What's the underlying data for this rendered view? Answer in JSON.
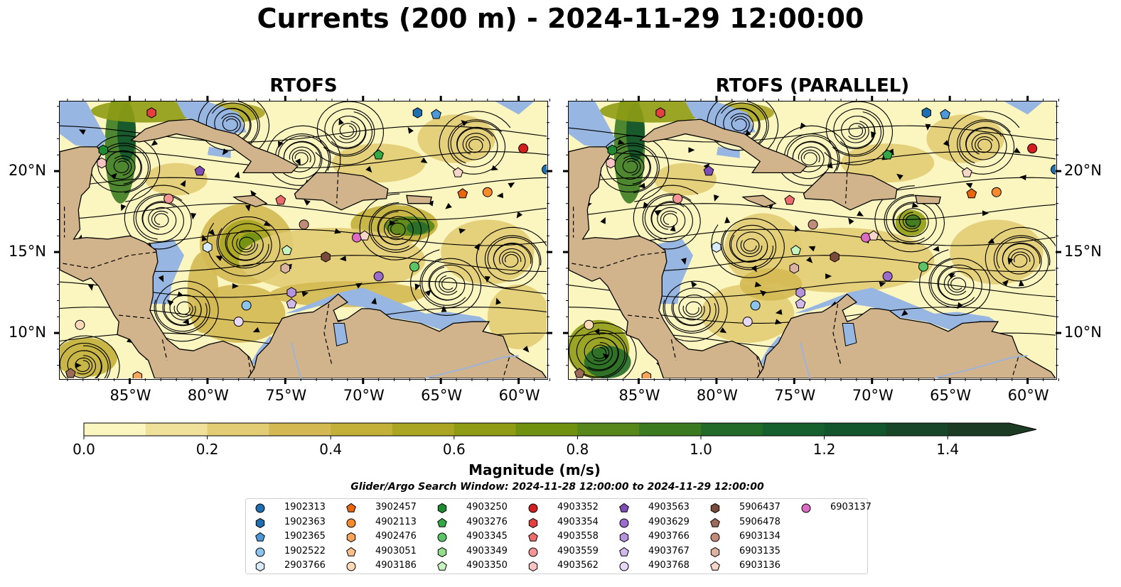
{
  "title": "Currents (200 m) - 2024-11-29 12:00:00",
  "panels": [
    {
      "title": "RTOFS"
    },
    {
      "title": "RTOFS (PARALLEL)"
    }
  ],
  "axes": {
    "lon_ticks": [
      "85°W",
      "80°W",
      "75°W",
      "70°W",
      "65°W",
      "60°W"
    ],
    "lon_values": [
      -85,
      -80,
      -75,
      -70,
      -65,
      -60
    ],
    "lat_ticks": [
      "20°N",
      "15°N",
      "10°N"
    ],
    "lat_values": [
      20,
      15,
      10
    ],
    "lon_range": [
      -89.5,
      -58.2
    ],
    "lat_range": [
      7.2,
      24.3
    ]
  },
  "colorbar": {
    "label": "Magnitude (m/s)",
    "tick_labels": [
      "0.0",
      "0.2",
      "0.4",
      "0.6",
      "0.8",
      "1.0",
      "1.2",
      "1.4"
    ],
    "tick_values": [
      0.0,
      0.2,
      0.4,
      0.6,
      0.8,
      1.0,
      1.2,
      1.4
    ],
    "range": [
      0,
      1.5
    ],
    "extend": "max",
    "colors": [
      "#fbf5c0",
      "#efe19a",
      "#e2cc74",
      "#d4b953",
      "#c2b038",
      "#aaa522",
      "#8f9c14",
      "#709110",
      "#57861a",
      "#3c7a20",
      "#236b28",
      "#15602d",
      "#13552d",
      "#174629",
      "#1b3b23"
    ]
  },
  "search_window": "Glider/Argo Search Window: 2024-11-28 12:00:00 to 2024-11-29 12:00:00",
  "colors": {
    "ocean_low": "#fbf5c0",
    "land": "#d2b48c",
    "shallow_water": "#97b6e2"
  },
  "legend": [
    {
      "id": "1902313",
      "marker": "circle",
      "color": "#1f6eb0"
    },
    {
      "id": "1902363",
      "marker": "hexagon",
      "color": "#1f6eb0"
    },
    {
      "id": "1902365",
      "marker": "pentagon",
      "color": "#4c98d9"
    },
    {
      "id": "1902522",
      "marker": "circle",
      "color": "#8cc4ee"
    },
    {
      "id": "2903766",
      "marker": "hexagon",
      "color": "#d7ebfa"
    },
    {
      "id": "3902457",
      "marker": "pentagon",
      "color": "#e8660d"
    },
    {
      "id": "4902113",
      "marker": "circle",
      "color": "#f58a2f"
    },
    {
      "id": "4902476",
      "marker": "hexagon",
      "color": "#f6a55a"
    },
    {
      "id": "4903051",
      "marker": "pentagon",
      "color": "#f9c08b"
    },
    {
      "id": "4903186",
      "marker": "circle",
      "color": "#fcd9b8"
    },
    {
      "id": "4903250",
      "marker": "hexagon",
      "color": "#1e8b32"
    },
    {
      "id": "4903276",
      "marker": "pentagon",
      "color": "#33a845"
    },
    {
      "id": "4903345",
      "marker": "circle",
      "color": "#5cc466"
    },
    {
      "id": "4903349",
      "marker": "hexagon",
      "color": "#93dd8c"
    },
    {
      "id": "4903350",
      "marker": "pentagon",
      "color": "#c6f3c0"
    },
    {
      "id": "4903352",
      "marker": "circle",
      "color": "#d21e1e"
    },
    {
      "id": "4903354",
      "marker": "hexagon",
      "color": "#e53f3f"
    },
    {
      "id": "4903558",
      "marker": "pentagon",
      "color": "#ef6b6b"
    },
    {
      "id": "4903559",
      "marker": "circle",
      "color": "#f59595"
    },
    {
      "id": "4903562",
      "marker": "hexagon",
      "color": "#fbc4c4"
    },
    {
      "id": "4903563",
      "marker": "pentagon",
      "color": "#7e4cb5"
    },
    {
      "id": "4903629",
      "marker": "circle",
      "color": "#9b6ccc"
    },
    {
      "id": "4903766",
      "marker": "hexagon",
      "color": "#b594dc"
    },
    {
      "id": "4903767",
      "marker": "pentagon",
      "color": "#d1b9ec"
    },
    {
      "id": "4903768",
      "marker": "circle",
      "color": "#e7d8f6"
    },
    {
      "id": "5906437",
      "marker": "hexagon",
      "color": "#7a4a3a"
    },
    {
      "id": "5906478",
      "marker": "pentagon",
      "color": "#9b6a58"
    },
    {
      "id": "6903134",
      "marker": "circle",
      "color": "#c08b78"
    },
    {
      "id": "6903135",
      "marker": "hexagon",
      "color": "#dcb2a0"
    },
    {
      "id": "6903136",
      "marker": "pentagon",
      "color": "#f5d6c8"
    },
    {
      "id": "6903137",
      "marker": "circle",
      "color": "#dc6cc3"
    }
  ],
  "chart_data": {
    "type": "map",
    "title": "Currents (200 m) - 2024-11-29 12:00:00",
    "panels": [
      "RTOFS",
      "RTOFS (PARALLEL)"
    ],
    "variable": "Magnitude (m/s)",
    "lon_range": [
      -89.5,
      -58.2
    ],
    "lat_range": [
      7.2,
      24.3
    ],
    "markers": [
      {
        "panel": 0,
        "id": "4903354",
        "lon": -83.6,
        "lat": 23.6
      },
      {
        "panel": 0,
        "id": "1902363",
        "lon": -66.5,
        "lat": 23.6
      },
      {
        "panel": 0,
        "id": "1902365",
        "lon": -65.3,
        "lat": 23.5
      },
      {
        "panel": 0,
        "id": "4903250",
        "lon": -86.7,
        "lat": 21.3
      },
      {
        "panel": 0,
        "id": "4903352",
        "lon": -59.7,
        "lat": 21.4
      },
      {
        "panel": 0,
        "id": "4903276",
        "lon": -69.0,
        "lat": 21.0
      },
      {
        "panel": 0,
        "id": "4903562",
        "lon": -86.8,
        "lat": 20.5
      },
      {
        "panel": 0,
        "id": "4903563",
        "lon": -80.5,
        "lat": 20.0
      },
      {
        "panel": 0,
        "id": "1902313",
        "lon": -58.2,
        "lat": 20.1
      },
      {
        "panel": 0,
        "id": "6903136",
        "lon": -63.9,
        "lat": 19.9
      },
      {
        "panel": 0,
        "id": "4903559",
        "lon": -82.5,
        "lat": 18.3
      },
      {
        "panel": 0,
        "id": "4903558",
        "lon": -75.3,
        "lat": 18.2
      },
      {
        "panel": 0,
        "id": "3902457",
        "lon": -63.6,
        "lat": 18.6
      },
      {
        "panel": 0,
        "id": "4902113",
        "lon": -62.0,
        "lat": 18.7
      },
      {
        "panel": 0,
        "id": "6903134",
        "lon": -73.8,
        "lat": 16.7
      },
      {
        "panel": 0,
        "id": "6903137",
        "lon": -70.4,
        "lat": 15.9
      },
      {
        "panel": 0,
        "id": "6903136",
        "lon": -69.9,
        "lat": 16.0
      },
      {
        "panel": 0,
        "id": "2903766",
        "lon": -80.0,
        "lat": 15.3
      },
      {
        "panel": 0,
        "id": "4903350",
        "lon": -74.9,
        "lat": 15.1
      },
      {
        "panel": 0,
        "id": "5906437",
        "lon": -72.4,
        "lat": 14.7
      },
      {
        "panel": 0,
        "id": "4903345",
        "lon": -66.7,
        "lat": 14.1
      },
      {
        "panel": 0,
        "id": "6903135",
        "lon": -75.0,
        "lat": 14.0
      },
      {
        "panel": 0,
        "id": "4903629",
        "lon": -69.0,
        "lat": 13.5
      },
      {
        "panel": 0,
        "id": "4903766",
        "lon": -74.6,
        "lat": 12.5
      },
      {
        "panel": 0,
        "id": "4903767",
        "lon": -74.6,
        "lat": 11.8
      },
      {
        "panel": 0,
        "id": "1902522",
        "lon": -77.5,
        "lat": 11.7
      },
      {
        "panel": 0,
        "id": "4903768",
        "lon": -78.0,
        "lat": 10.7
      },
      {
        "panel": 0,
        "id": "4903186",
        "lon": -88.2,
        "lat": 10.5
      },
      {
        "panel": 0,
        "id": "5906478",
        "lon": -88.8,
        "lat": 7.5
      },
      {
        "panel": 0,
        "id": "4902476",
        "lon": -84.5,
        "lat": 7.3
      },
      {
        "panel": 1,
        "id": "4903354",
        "lon": -83.6,
        "lat": 23.6
      },
      {
        "panel": 1,
        "id": "1902363",
        "lon": -66.5,
        "lat": 23.6
      },
      {
        "panel": 1,
        "id": "1902365",
        "lon": -65.3,
        "lat": 23.5
      },
      {
        "panel": 1,
        "id": "4903250",
        "lon": -86.7,
        "lat": 21.3
      },
      {
        "panel": 1,
        "id": "4903352",
        "lon": -59.7,
        "lat": 21.4
      },
      {
        "panel": 1,
        "id": "4903276",
        "lon": -69.0,
        "lat": 21.0
      },
      {
        "panel": 1,
        "id": "4903562",
        "lon": -86.8,
        "lat": 20.5
      },
      {
        "panel": 1,
        "id": "4903563",
        "lon": -80.5,
        "lat": 20.0
      },
      {
        "panel": 1,
        "id": "1902313",
        "lon": -58.2,
        "lat": 20.1
      },
      {
        "panel": 1,
        "id": "6903136",
        "lon": -63.9,
        "lat": 19.9
      },
      {
        "panel": 1,
        "id": "4903559",
        "lon": -82.5,
        "lat": 18.3
      },
      {
        "panel": 1,
        "id": "4903558",
        "lon": -75.3,
        "lat": 18.2
      },
      {
        "panel": 1,
        "id": "3902457",
        "lon": -63.6,
        "lat": 18.6
      },
      {
        "panel": 1,
        "id": "4902113",
        "lon": -62.0,
        "lat": 18.7
      },
      {
        "panel": 1,
        "id": "6903134",
        "lon": -73.8,
        "lat": 16.7
      },
      {
        "panel": 1,
        "id": "6903137",
        "lon": -70.4,
        "lat": 15.9
      },
      {
        "panel": 1,
        "id": "6903136",
        "lon": -69.9,
        "lat": 16.0
      },
      {
        "panel": 1,
        "id": "2903766",
        "lon": -80.0,
        "lat": 15.3
      },
      {
        "panel": 1,
        "id": "4903350",
        "lon": -74.9,
        "lat": 15.1
      },
      {
        "panel": 1,
        "id": "5906437",
        "lon": -72.4,
        "lat": 14.7
      },
      {
        "panel": 1,
        "id": "4903345",
        "lon": -66.7,
        "lat": 14.1
      },
      {
        "panel": 1,
        "id": "6903135",
        "lon": -75.0,
        "lat": 14.0
      },
      {
        "panel": 1,
        "id": "4903629",
        "lon": -69.0,
        "lat": 13.5
      },
      {
        "panel": 1,
        "id": "4903766",
        "lon": -74.6,
        "lat": 12.5
      },
      {
        "panel": 1,
        "id": "4903767",
        "lon": -74.6,
        "lat": 11.8
      },
      {
        "panel": 1,
        "id": "1902522",
        "lon": -77.5,
        "lat": 11.7
      },
      {
        "panel": 1,
        "id": "4903768",
        "lon": -78.0,
        "lat": 10.7
      },
      {
        "panel": 1,
        "id": "4903186",
        "lon": -88.2,
        "lat": 10.5
      },
      {
        "panel": 1,
        "id": "5906478",
        "lon": -88.8,
        "lat": 7.5
      },
      {
        "panel": 1,
        "id": "4902476",
        "lon": -84.5,
        "lat": 7.3
      }
    ]
  }
}
